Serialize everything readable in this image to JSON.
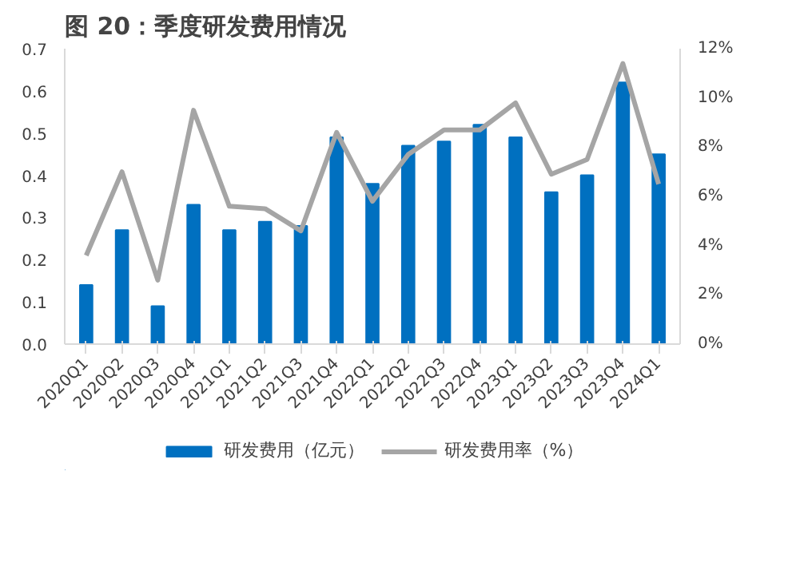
{
  "chart_data": {
    "type": "bar",
    "title": "图 20：季度研发费用情况",
    "categories": [
      "2020Q1",
      "2020Q2",
      "2020Q3",
      "2020Q4",
      "2021Q1",
      "2021Q2",
      "2021Q3",
      "2021Q4",
      "2022Q1",
      "2022Q2",
      "2022Q3",
      "2022Q4",
      "2023Q1",
      "2023Q2",
      "2023Q3",
      "2023Q4",
      "2024Q1"
    ],
    "series": [
      {
        "name": "研发费用（亿元）",
        "color": "#0070c0",
        "values": [
          0.14,
          0.27,
          0.09,
          0.33,
          0.27,
          0.29,
          0.28,
          0.49,
          0.38,
          0.47,
          0.48,
          0.52,
          0.49,
          0.36,
          0.4,
          0.62,
          0.45
        ]
      },
      {
        "name": "研发费用率（%）",
        "type": "line",
        "axis": "y2",
        "color": "#a5a5a5",
        "values": [
          3.6,
          7.0,
          2.6,
          9.5,
          5.6,
          5.5,
          4.6,
          8.6,
          5.8,
          7.7,
          8.7,
          8.7,
          9.8,
          6.9,
          7.5,
          11.4,
          6.5
        ]
      }
    ],
    "ylim": [
      0,
      0.7
    ],
    "yticks": [
      {
        "value": 0,
        "label": "0.0"
      },
      0.1,
      0.2,
      0.3,
      0.4,
      0.5,
      0.6,
      0.7
    ],
    "y2lim": [
      0,
      12
    ],
    "y2ticks": [
      {
        "value": 0,
        "label": "0%"
      },
      {
        "value": 2,
        "label": "2%"
      },
      {
        "value": 4,
        "label": "4%"
      },
      {
        "value": 6,
        "label": "6%"
      },
      {
        "value": 8,
        "label": "8%"
      },
      {
        "value": 10,
        "label": "10%"
      },
      {
        "value": 12,
        "label": "12%"
      }
    ],
    "grid": false,
    "legend": "bottom",
    "marker": "none",
    "line_style": "solid"
  }
}
